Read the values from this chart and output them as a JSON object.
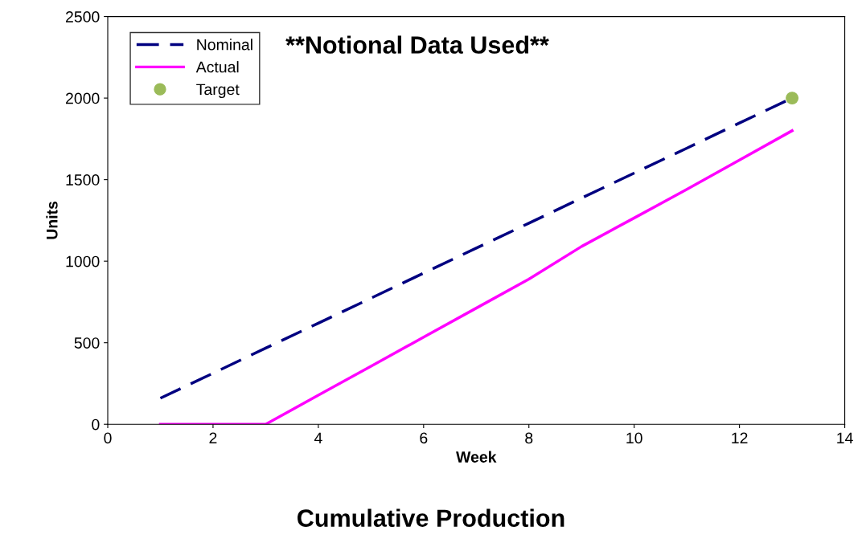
{
  "chart_data": {
    "type": "line",
    "title": "Cumulative Production",
    "xlabel": "Week",
    "ylabel": "Units",
    "annotations": [
      "**Notional Data Used**"
    ],
    "x": [
      1,
      2,
      3,
      4,
      5,
      6,
      7,
      8,
      9,
      10,
      11,
      12,
      13
    ],
    "series": [
      {
        "name": "Nominal",
        "color": "#000080",
        "line_style": "dashed",
        "values": [
          160,
          313,
          467,
          620,
          773,
          927,
          1080,
          1233,
          1387,
          1540,
          1693,
          1847,
          2000
        ]
      },
      {
        "name": "Actual",
        "color": "#ff00ff",
        "line_style": "solid",
        "values": [
          0,
          0,
          0,
          178,
          356,
          534,
          712,
          890,
          1090,
          1265,
          1440,
          1620,
          1800
        ]
      },
      {
        "name": "Target",
        "type": "scatter",
        "color": "#9bbb59",
        "marker": "circle",
        "x": [
          13
        ],
        "values": [
          2000
        ]
      }
    ],
    "xlim": [
      0,
      14
    ],
    "xticks": [
      0,
      2,
      4,
      6,
      8,
      10,
      12,
      14
    ],
    "ylim": [
      0,
      2500
    ],
    "yticks": [
      0,
      500,
      1000,
      1500,
      2000,
      2500
    ],
    "grid": false,
    "legend": "top left"
  }
}
